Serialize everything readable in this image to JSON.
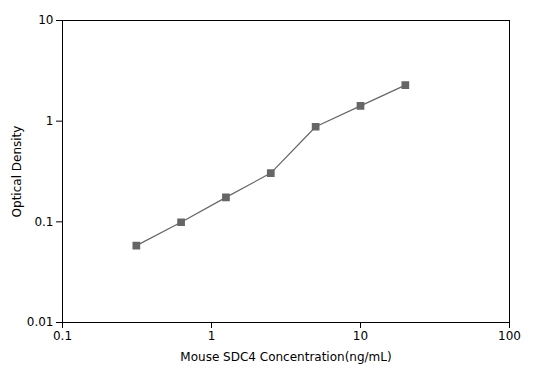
{
  "chart_data": {
    "type": "line",
    "x": [
      0.313,
      0.625,
      1.25,
      2.5,
      5.0,
      10.0,
      20.0
    ],
    "values": [
      0.058,
      0.099,
      0.175,
      0.305,
      0.88,
      1.42,
      2.28
    ],
    "xlabel": "Mouse SDC4 Concentration(ng/mL)",
    "ylabel": "Optical Density",
    "xlim": [
      0.1,
      100
    ],
    "ylim": [
      0.01,
      10
    ],
    "xticks": [
      0.1,
      1,
      10,
      100
    ],
    "yticks": [
      0.01,
      0.1,
      1,
      10
    ],
    "log": true,
    "grid": false,
    "color": "#666666",
    "marker": "square",
    "line_style": "solid"
  }
}
